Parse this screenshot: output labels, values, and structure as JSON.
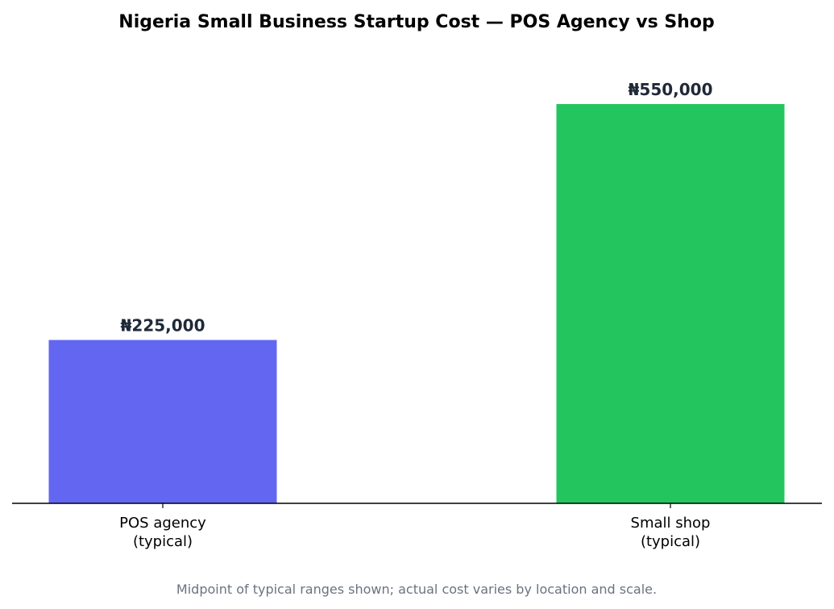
{
  "chart_data": {
    "type": "bar",
    "title": "Nigeria Small Business Startup Cost — POS Agency vs Shop",
    "categories": [
      [
        "POS agency",
        "(typical)"
      ],
      [
        "Small shop",
        "(typical)"
      ]
    ],
    "values": [
      225000,
      550000
    ],
    "value_labels": [
      "₦225,000",
      "₦550,000"
    ],
    "colors": [
      "#6366f1",
      "#22c55e"
    ],
    "xlabel": "",
    "ylabel": "",
    "ylim": [
      0,
      640000
    ],
    "y_axis_visible": false,
    "grid": false,
    "footnote": "Midpoint of typical ranges shown; actual cost varies by location and scale."
  }
}
